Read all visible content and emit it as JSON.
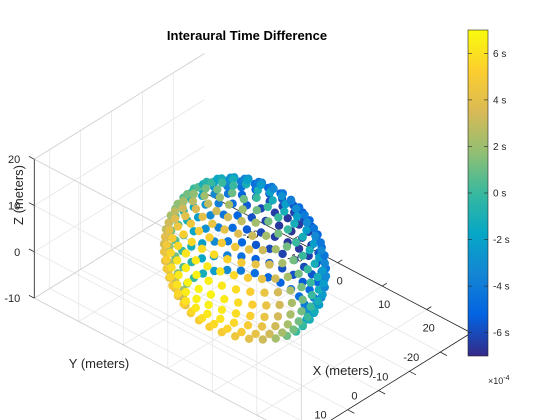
{
  "chart_data": {
    "type": "scatter",
    "title": "Interaural Time Difference",
    "xlabel": "X (meters)",
    "ylabel": "Y (meters)",
    "zlabel": "Z (meters)",
    "xlim": [
      -30,
      30
    ],
    "ylim": [
      -30,
      25
    ],
    "zlim": [
      -10,
      20
    ],
    "xticks": [
      "-20",
      "-10",
      "0",
      "10",
      "20"
    ],
    "yticks": [
      "20",
      "10",
      "0",
      "-10",
      "-20"
    ],
    "zticks": [
      "20",
      "10",
      "0",
      "-10"
    ],
    "grid": true,
    "view": "3d-oblique",
    "colorbar": {
      "range": [
        -7,
        7
      ],
      "ticks": [
        "6 s",
        "4 s",
        "2 s",
        "0 s",
        "-2 s",
        "-4 s",
        "-6 s"
      ],
      "multiplier": "×10^-4",
      "colormap": "parula",
      "colors": [
        "#352a87",
        "#0363e1",
        "#1485d4",
        "#06a7c6",
        "#38b99e",
        "#92bf73",
        "#d9ba56",
        "#fcce2e",
        "#f9fb0e"
      ]
    },
    "series": [
      {
        "shape": "sphere",
        "center": [
          0,
          0,
          3
        ],
        "radius": 15,
        "elevation_rings_deg": [
          -40,
          -30,
          -20,
          -10,
          0,
          10,
          20,
          30,
          40,
          50,
          60,
          70,
          80
        ],
        "azimuth_step_deg": 10,
        "color_value": "ITD proportional to sin(azimuth)*cos(elevation), max 6.7e-4 s"
      }
    ]
  }
}
